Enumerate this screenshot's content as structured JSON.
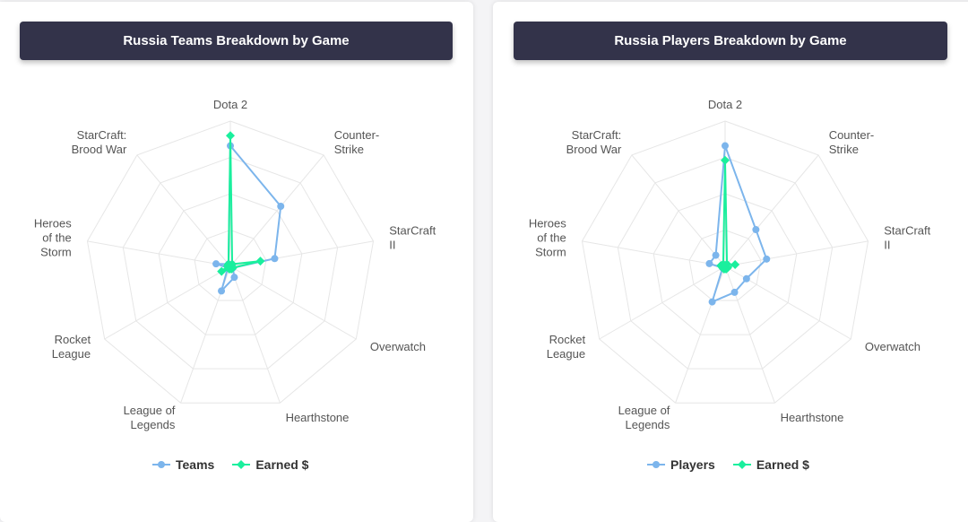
{
  "colors": {
    "teams": "#7cb5ec",
    "earned": "#1aef9d",
    "header_bg": "#33334a"
  },
  "chart_data": [
    {
      "type": "radar",
      "title": "Russia Teams Breakdown by Game",
      "categories": [
        "Dota 2",
        "Counter-Strike",
        "StarCraft II",
        "Overwatch",
        "Hearthstone",
        "League of Legends",
        "Rocket League",
        "Heroes of the Storm",
        "StarCraft: Brood War"
      ],
      "category_lines": [
        [
          "Dota 2"
        ],
        [
          "Counter-",
          "Strike"
        ],
        [
          "StarCraft",
          "II"
        ],
        [
          "Overwatch"
        ],
        [
          "Hearthstone"
        ],
        [
          "League of",
          "Legends"
        ],
        [
          "Rocket",
          "League"
        ],
        [
          "Heroes",
          "of the",
          "Storm"
        ],
        [
          "StarCraft:",
          "Brood War"
        ]
      ],
      "grid_levels": 4,
      "ylim": [
        0,
        1
      ],
      "legend_position": "bottom",
      "series": [
        {
          "name": "Teams",
          "color": "#7cb5ec",
          "marker": "circle",
          "values": [
            0.83,
            0.54,
            0.31,
            0.02,
            0.08,
            0.18,
            0.02,
            0.1,
            0.02
          ]
        },
        {
          "name": "Earned $",
          "color": "#1aef9d",
          "marker": "diamond",
          "values": [
            0.9,
            0.02,
            0.21,
            0.02,
            0.02,
            0.02,
            0.07,
            0.02,
            0.02
          ]
        }
      ]
    },
    {
      "type": "radar",
      "title": "Russia Players Breakdown by Game",
      "categories": [
        "Dota 2",
        "Counter-Strike",
        "StarCraft II",
        "Overwatch",
        "Hearthstone",
        "League of Legends",
        "Rocket League",
        "Heroes of the Storm",
        "StarCraft: Brood War"
      ],
      "category_lines": [
        [
          "Dota 2"
        ],
        [
          "Counter-",
          "Strike"
        ],
        [
          "StarCraft",
          "II"
        ],
        [
          "Overwatch"
        ],
        [
          "Hearthstone"
        ],
        [
          "League of",
          "Legends"
        ],
        [
          "Rocket",
          "League"
        ],
        [
          "Heroes",
          "of the",
          "Storm"
        ],
        [
          "StarCraft:",
          "Brood War"
        ]
      ],
      "grid_levels": 4,
      "ylim": [
        0,
        1
      ],
      "legend_position": "bottom",
      "series": [
        {
          "name": "Players",
          "color": "#7cb5ec",
          "marker": "circle",
          "values": [
            0.83,
            0.33,
            0.29,
            0.17,
            0.19,
            0.26,
            0.02,
            0.11,
            0.1
          ]
        },
        {
          "name": "Earned $",
          "color": "#1aef9d",
          "marker": "diamond",
          "values": [
            0.73,
            0.02,
            0.07,
            0.02,
            0.02,
            0.02,
            0.02,
            0.03,
            0.02
          ]
        }
      ]
    }
  ]
}
